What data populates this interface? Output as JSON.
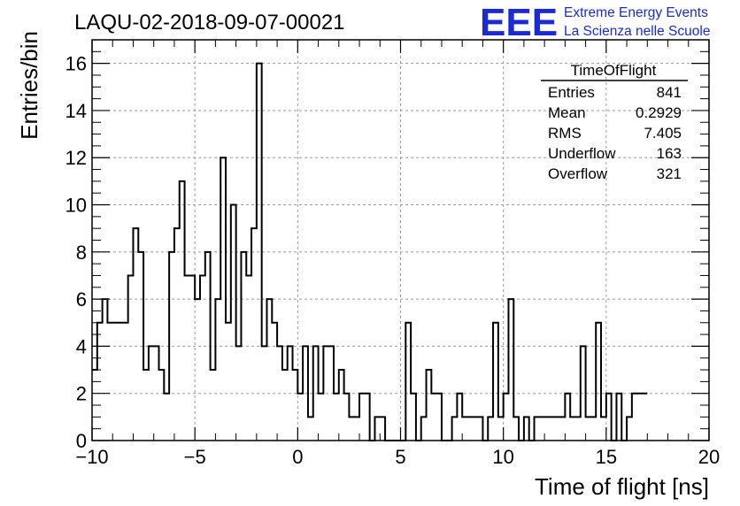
{
  "chart_data": {
    "type": "histogram",
    "title": "LAQU-02-2018-09-07-00021",
    "xlabel": "Time of flight [ns]",
    "ylabel": "Entries/bin",
    "xlim": [
      -10,
      20
    ],
    "ylim": [
      0,
      17
    ],
    "x_ticks": [
      -10,
      -5,
      0,
      5,
      10,
      15,
      20
    ],
    "x_tick_labels": [
      "−10",
      "−5",
      "0",
      "5",
      "10",
      "15",
      "20"
    ],
    "y_ticks": [
      0,
      2,
      4,
      6,
      8,
      10,
      12,
      14,
      16
    ],
    "y_tick_labels": [
      "0",
      "2",
      "4",
      "6",
      "8",
      "10",
      "12",
      "14",
      "16"
    ],
    "grid": true,
    "bin_width": 0.25,
    "x_start": -10,
    "counts": [
      3,
      5,
      6,
      5,
      5,
      5,
      5,
      7,
      9,
      8,
      3,
      4,
      4,
      3,
      2,
      8,
      9,
      11,
      7,
      7,
      6,
      7,
      8,
      3,
      6,
      12,
      5,
      10,
      4,
      8,
      7,
      9,
      16,
      4,
      6,
      5,
      4,
      3,
      4,
      3,
      2,
      4,
      1,
      4,
      2,
      4,
      4,
      2,
      3,
      2,
      1,
      1,
      2,
      2,
      0,
      1,
      1,
      0,
      0,
      0,
      0,
      5,
      2,
      0,
      1,
      3,
      2,
      2,
      0,
      0,
      1,
      2,
      1,
      1,
      1,
      1,
      0,
      1,
      5,
      1,
      2,
      6,
      1,
      0,
      1,
      0,
      1,
      1,
      1,
      1,
      1,
      1,
      2,
      1,
      1,
      4,
      1,
      1,
      5,
      1,
      2,
      0,
      2,
      0,
      1,
      2,
      2,
      2
    ],
    "series": [
      {
        "name": "TimeOfFlight"
      }
    ]
  },
  "stats_box": {
    "name": "TimeOfFlight",
    "rows": [
      {
        "label": "Entries",
        "value": "841"
      },
      {
        "label": "Mean",
        "value": "0.2929"
      },
      {
        "label": "RMS",
        "value": "7.405"
      },
      {
        "label": "Underflow",
        "value": "163"
      },
      {
        "label": "Overflow",
        "value": "321"
      }
    ]
  },
  "logo": {
    "mark": "EEE",
    "line1": "Extreme Energy Events",
    "line2": "La Scienza nelle Scuole",
    "color": "#1a2bd6"
  }
}
